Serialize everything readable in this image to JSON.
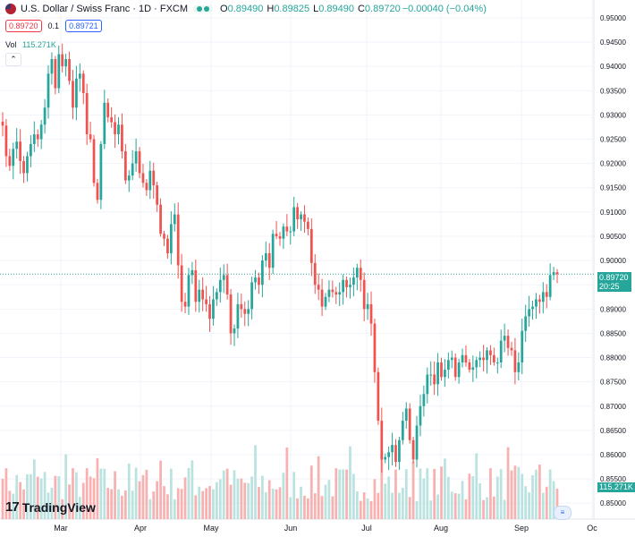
{
  "header": {
    "title": "U.S. Dollar / Swiss Franc · 1D · FXCM",
    "ohlc": [
      {
        "key": "O",
        "value": "0.89490"
      },
      {
        "key": "H",
        "value": "0.89825"
      },
      {
        "key": "L",
        "value": "0.89490"
      },
      {
        "key": "C",
        "value": "0.89720"
      }
    ],
    "change": "−0.00040 (−0.04%)",
    "sell_price": "0.89720",
    "spread": "0.1",
    "buy_price": "0.89721",
    "volume_label": "Vol",
    "volume_value": "115.271K",
    "collapse_icon": "chevron-up"
  },
  "price_tag": {
    "price": "0.89720",
    "countdown": "20:25"
  },
  "volume_tag": "115.271K",
  "logo_text": "TradingView",
  "colors": {
    "up": "#26a69a",
    "down": "#ef5350",
    "grid": "#f0f3fa",
    "text": "#131722"
  },
  "chart_data": {
    "type": "candlestick",
    "y_ticks": [
      "0.95000",
      "0.94500",
      "0.94000",
      "0.93500",
      "0.93000",
      "0.92500",
      "0.92000",
      "0.91500",
      "0.91000",
      "0.90500",
      "0.90000",
      "0.89500",
      "0.89000",
      "0.88500",
      "0.88000",
      "0.87500",
      "0.87000",
      "0.86500",
      "0.86000",
      "0.85500",
      "0.85000"
    ],
    "x_ticks": [
      "Mar",
      "Apr",
      "May",
      "Jun",
      "Jul",
      "Aug",
      "Sep",
      "Oc"
    ],
    "ylim": [
      0.8482,
      0.9522
    ],
    "grid": true,
    "closes": [
      0.9278,
      0.9215,
      0.9195,
      0.923,
      0.9245,
      0.9205,
      0.918,
      0.9215,
      0.924,
      0.926,
      0.925,
      0.928,
      0.9315,
      0.9385,
      0.9415,
      0.9355,
      0.9425,
      0.94,
      0.9415,
      0.937,
      0.9315,
      0.9375,
      0.9385,
      0.9345,
      0.926,
      0.925,
      0.916,
      0.9125,
      0.924,
      0.9325,
      0.9295,
      0.9285,
      0.926,
      0.928,
      0.9225,
      0.9165,
      0.9175,
      0.92,
      0.9225,
      0.918,
      0.916,
      0.9145,
      0.9185,
      0.9155,
      0.9115,
      0.9055,
      0.9045,
      0.9015,
      0.9075,
      0.9095,
      0.899,
      0.8915,
      0.8905,
      0.897,
      0.898,
      0.8915,
      0.894,
      0.892,
      0.891,
      0.888,
      0.892,
      0.8935,
      0.896,
      0.897,
      0.893,
      0.885,
      0.886,
      0.891,
      0.89,
      0.889,
      0.89,
      0.8955,
      0.8965,
      0.895,
      0.9,
      0.9015,
      0.8985,
      0.9055,
      0.905,
      0.9045,
      0.907,
      0.906,
      0.906,
      0.911,
      0.9085,
      0.9095,
      0.908,
      0.9065,
      0.8995,
      0.895,
      0.894,
      0.8905,
      0.8925,
      0.894,
      0.8935,
      0.893,
      0.8935,
      0.896,
      0.8945,
      0.895,
      0.8965,
      0.8985,
      0.896,
      0.89,
      0.891,
      0.887,
      0.877,
      0.867,
      0.859,
      0.8595,
      0.8605,
      0.862,
      0.8585,
      0.863,
      0.867,
      0.8695,
      0.863,
      0.859,
      0.866,
      0.87,
      0.8725,
      0.8765,
      0.8765,
      0.8745,
      0.879,
      0.876,
      0.8775,
      0.8795,
      0.88,
      0.876,
      0.879,
      0.8805,
      0.879,
      0.8775,
      0.878,
      0.8795,
      0.88,
      0.8795,
      0.8815,
      0.8805,
      0.879,
      0.879,
      0.8835,
      0.8845,
      0.882,
      0.8815,
      0.877,
      0.879,
      0.8855,
      0.8885,
      0.89,
      0.8905,
      0.892,
      0.8915,
      0.8935,
      0.8925,
      0.897,
      0.8976,
      0.8972
    ],
    "volume_value": "115.271K"
  }
}
